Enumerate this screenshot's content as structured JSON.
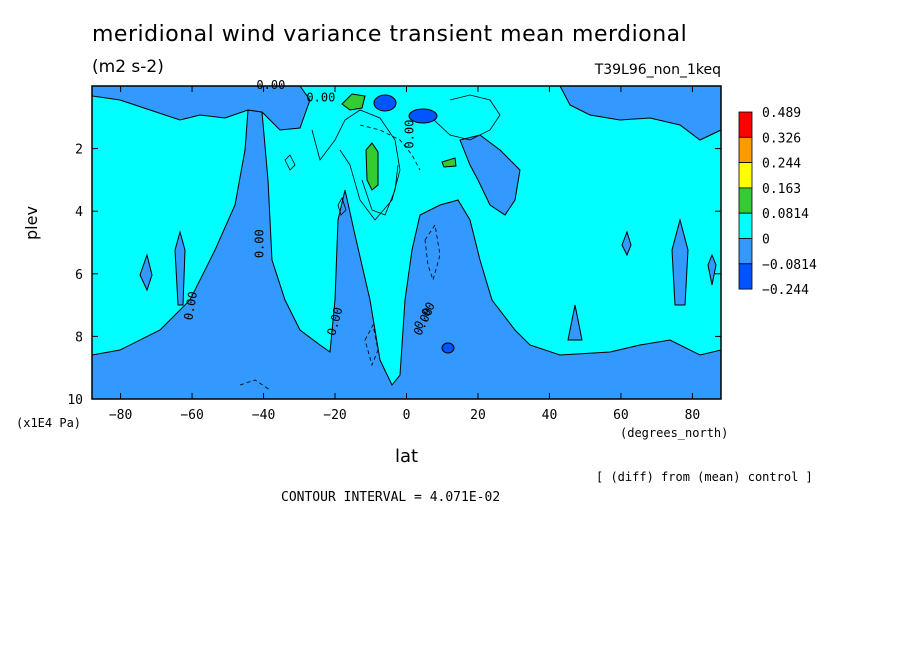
{
  "chart_data": {
    "type": "contour",
    "title": "meridional wind variance transient mean merdional",
    "units": "(m2 s-2)",
    "run_label": "T39L96_non_1keq",
    "xlabel": "lat",
    "x_units": "(degrees_north)",
    "ylabel": "plev",
    "y_units": "(x1E4 Pa)",
    "xlim": [
      -88,
      88
    ],
    "ylim": [
      10,
      0
    ],
    "x_ticks": [
      -80,
      -60,
      -40,
      -20,
      0,
      20,
      40,
      60,
      80
    ],
    "y_ticks": [
      2,
      4,
      6,
      8,
      10
    ],
    "x_tick_labels": [
      "−80",
      "−60",
      "−40",
      "−20",
      "0",
      "20",
      "40",
      "60",
      "80"
    ],
    "y_tick_labels": [
      "2",
      "4",
      "6",
      "8",
      "10"
    ],
    "contour_labels": [
      "0.00",
      "0.00",
      "0.00",
      "0.00",
      "0.00",
      "0.00",
      "0.00",
      "0.00"
    ],
    "colorbar": {
      "labels": [
        "0.489",
        "0.326",
        "0.244",
        "0.163",
        "0.0814",
        "0",
        "−0.0814",
        "−0.244"
      ],
      "colors": [
        "#ff0000",
        "#ff9900",
        "#ffff00",
        "#33cc33",
        "#00ffff",
        "#3399ff",
        "#0055ff"
      ]
    },
    "note": "[ (diff) from (mean) control ]",
    "contour_interval": "CONTOUR INTERVAL = 4.071E-02"
  }
}
